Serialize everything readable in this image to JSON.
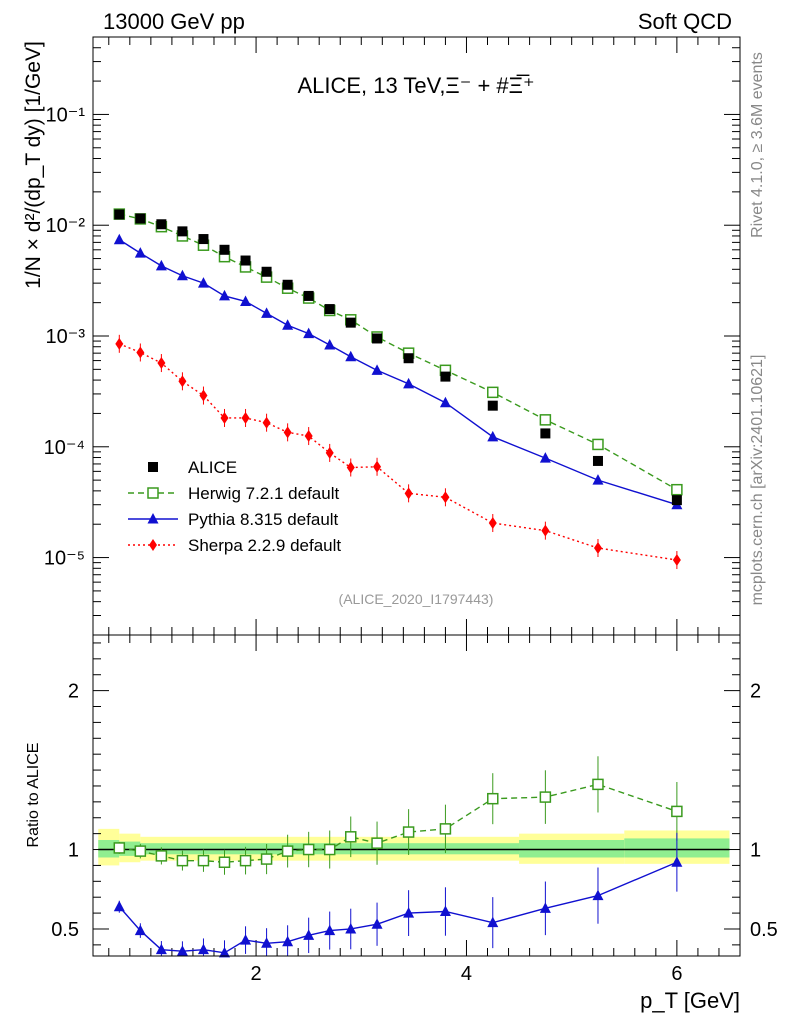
{
  "header": {
    "left": "13000 GeV pp",
    "right": "Soft QCD"
  },
  "side_labels": {
    "rivet": "Rivet 4.1.0, ≥ 3.6M events",
    "mcplots": "mcplots.cern.ch [arXiv:2401.10621]"
  },
  "watermark": "(ALICE_2020_I1797443)",
  "colors": {
    "alice": "#000000",
    "herwig": "#3a9a1e",
    "pythia": "#1010d0",
    "sherpa": "#ff0000",
    "band_outer": "#ffff99",
    "band_inner": "#90ee90"
  },
  "chart_data": [
    {
      "type": "scatter",
      "title": "ALICE, 13 TeV,Ξ⁻ + #Ξ̅⁺",
      "ylabel": "1/N × d²/(dp_T dy) [1/GeV]",
      "xlabel": "p_T [GeV]",
      "yscale": "log",
      "ylim": [
        2e-06,
        0.5
      ],
      "xlim": [
        0.45,
        6.6
      ],
      "x_ticks": [
        "2",
        "4",
        "6"
      ],
      "y_ticks": [
        "10⁻¹",
        "10⁻²",
        "10⁻³",
        "10⁻⁴",
        "10⁻⁵"
      ],
      "x": [
        0.7,
        0.9,
        1.1,
        1.3,
        1.5,
        1.7,
        1.9,
        2.1,
        2.3,
        2.5,
        2.7,
        2.9,
        3.15,
        3.45,
        3.8,
        4.25,
        4.75,
        5.25,
        6.0
      ],
      "series": [
        {
          "name": "ALICE",
          "style": "black-square",
          "values": [
            0.0125,
            0.0115,
            0.0102,
            0.0088,
            0.0075,
            0.006,
            0.0048,
            0.0038,
            0.0029,
            0.0023,
            0.00175,
            0.00132,
            0.00095,
            0.00063,
            0.00043,
            0.000235,
            0.000132,
            7.45e-05,
            3.3e-05
          ]
        },
        {
          "name": "Herwig 7.2.1 default",
          "style": "green-open-square-dashed",
          "values": [
            0.0126,
            0.0114,
            0.0097,
            0.008,
            0.0066,
            0.0052,
            0.0042,
            0.0034,
            0.0027,
            0.0022,
            0.0017,
            0.0014,
            0.00098,
            0.0007,
            0.00049,
            0.00031,
            0.000175,
            0.000105,
            4.1e-05
          ]
        },
        {
          "name": "Pythia 8.315 default",
          "style": "blue-triangle-solid",
          "values": [
            0.0074,
            0.0056,
            0.0043,
            0.0035,
            0.003,
            0.0023,
            0.00205,
            0.0016,
            0.00125,
            0.00105,
            0.00083,
            0.00065,
            0.00049,
            0.00037,
            0.00025,
            0.000123,
            7.9e-05,
            5e-05,
            3e-05
          ]
        },
        {
          "name": "Sherpa 2.2.9 default",
          "style": "red-diamond-dotted",
          "values": [
            0.00085,
            0.00071,
            0.00057,
            0.00039,
            0.00029,
            0.000182,
            0.000182,
            0.000165,
            0.000135,
            0.000125,
            8.8e-05,
            6.5e-05,
            6.6e-05,
            3.8e-05,
            3.5e-05,
            2.05e-05,
            1.75e-05,
            1.22e-05,
            9.5e-06
          ]
        }
      ],
      "legend": [
        "ALICE",
        "Herwig 7.2.1 default",
        "Pythia 8.315 default",
        "Sherpa 2.2.9 default"
      ],
      "legend_position": "bottom-left"
    },
    {
      "type": "line",
      "ylabel": "Ratio to ALICE",
      "ylim": [
        0.33,
        2.35
      ],
      "y_ticks": [
        "0.5",
        "1",
        "2"
      ],
      "x": [
        0.7,
        0.9,
        1.1,
        1.3,
        1.5,
        1.7,
        1.9,
        2.1,
        2.3,
        2.5,
        2.7,
        2.9,
        3.15,
        3.45,
        3.8,
        4.25,
        4.75,
        5.25,
        6.0
      ],
      "series": [
        {
          "name": "Herwig 7.2.1 default",
          "values": [
            1.01,
            0.99,
            0.96,
            0.93,
            0.93,
            0.92,
            0.93,
            0.94,
            0.99,
            1.0,
            1.0,
            1.08,
            1.04,
            1.11,
            1.13,
            1.32,
            1.33,
            1.41,
            1.24
          ]
        },
        {
          "name": "Pythia 8.315 default",
          "values": [
            0.64,
            0.49,
            0.37,
            0.36,
            0.37,
            0.35,
            0.43,
            0.41,
            0.42,
            0.46,
            0.49,
            0.5,
            0.53,
            0.6,
            0.61,
            0.54,
            0.63,
            0.71,
            0.92
          ]
        }
      ],
      "bands": [
        {
          "x0": 0.5,
          "x1": 0.7,
          "outer": [
            0.9,
            1.13
          ],
          "inner": [
            0.95,
            1.06
          ]
        },
        {
          "x0": 0.7,
          "x1": 0.9,
          "outer": [
            0.92,
            1.1
          ],
          "inner": [
            0.96,
            1.05
          ]
        },
        {
          "x0": 0.9,
          "x1": 4.5,
          "outer": [
            0.93,
            1.08
          ],
          "inner": [
            0.97,
            1.04
          ]
        },
        {
          "x0": 4.5,
          "x1": 5.5,
          "outer": [
            0.91,
            1.1
          ],
          "inner": [
            0.95,
            1.06
          ]
        },
        {
          "x0": 5.5,
          "x1": 6.5,
          "outer": [
            0.91,
            1.12
          ],
          "inner": [
            0.95,
            1.07
          ]
        }
      ]
    }
  ]
}
